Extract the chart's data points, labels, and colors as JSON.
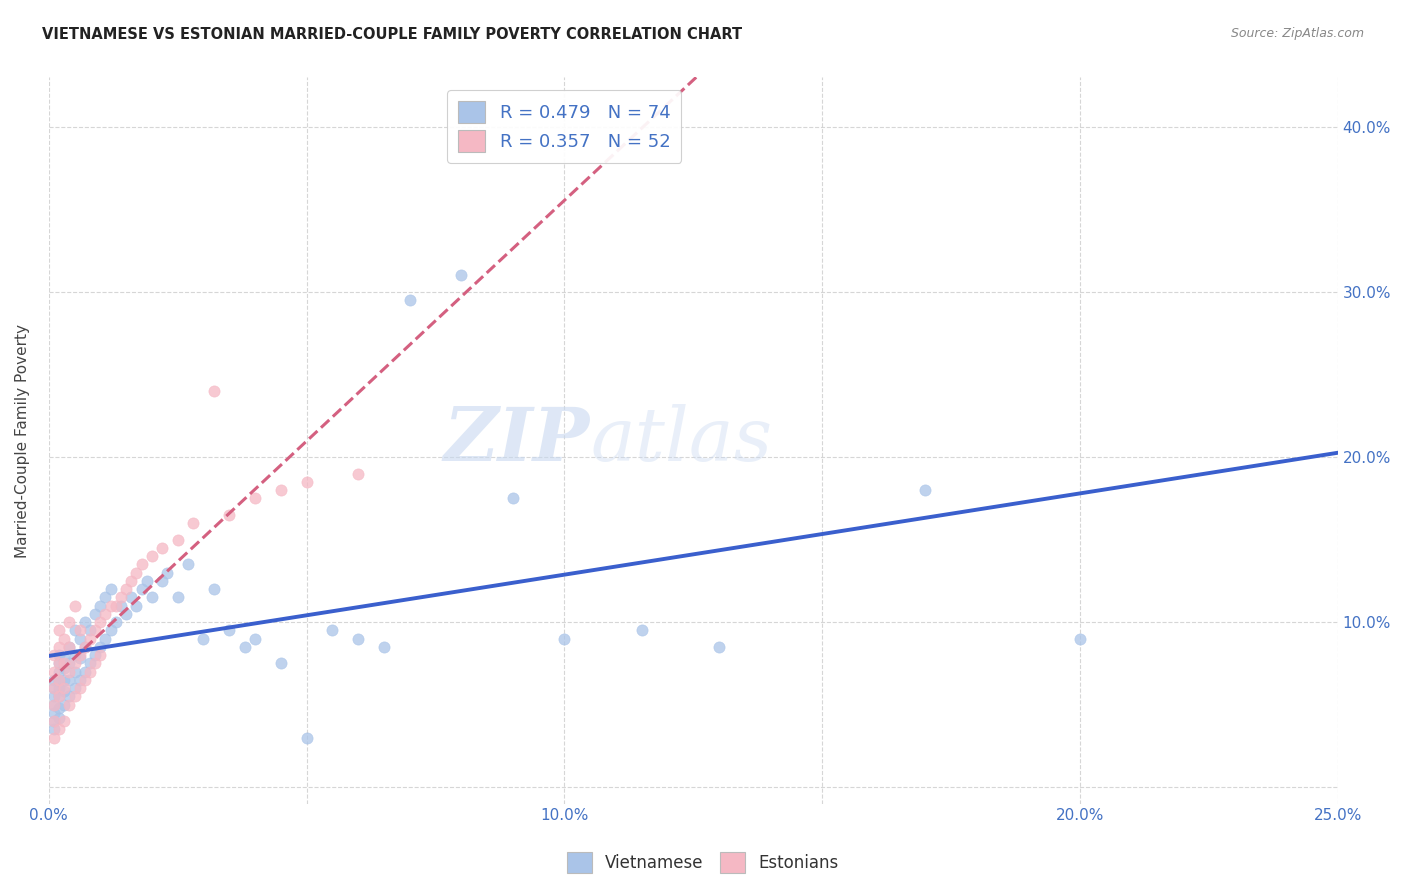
{
  "title": "VIETNAMESE VS ESTONIAN MARRIED-COUPLE FAMILY POVERTY CORRELATION CHART",
  "source": "Source: ZipAtlas.com",
  "ylabel": "Married-Couple Family Poverty",
  "xlim": [
    0.0,
    0.25
  ],
  "ylim": [
    -0.01,
    0.43
  ],
  "xticks": [
    0.0,
    0.05,
    0.1,
    0.15,
    0.2,
    0.25
  ],
  "yticks": [
    0.0,
    0.1,
    0.2,
    0.3,
    0.4
  ],
  "xticklabels": [
    "0.0%",
    "",
    "10.0%",
    "",
    "20.0%",
    "25.0%"
  ],
  "yticklabels_right": [
    "",
    "10.0%",
    "20.0%",
    "30.0%",
    "40.0%"
  ],
  "background_color": "#ffffff",
  "grid_color": "#cccccc",
  "viet_color": "#aac4e8",
  "esto_color": "#f5b8c4",
  "viet_line_color": "#3a5fcd",
  "esto_line_color": "#d46080",
  "viet_scatter_x": [
    0.001,
    0.001,
    0.001,
    0.001,
    0.001,
    0.001,
    0.001,
    0.002,
    0.002,
    0.002,
    0.002,
    0.002,
    0.002,
    0.002,
    0.002,
    0.003,
    0.003,
    0.003,
    0.003,
    0.003,
    0.004,
    0.004,
    0.004,
    0.004,
    0.005,
    0.005,
    0.005,
    0.005,
    0.006,
    0.006,
    0.006,
    0.007,
    0.007,
    0.007,
    0.008,
    0.008,
    0.009,
    0.009,
    0.01,
    0.01,
    0.011,
    0.011,
    0.012,
    0.012,
    0.013,
    0.014,
    0.015,
    0.016,
    0.017,
    0.018,
    0.019,
    0.02,
    0.022,
    0.023,
    0.025,
    0.027,
    0.03,
    0.032,
    0.035,
    0.038,
    0.04,
    0.045,
    0.05,
    0.055,
    0.06,
    0.065,
    0.07,
    0.08,
    0.09,
    0.1,
    0.115,
    0.13,
    0.17,
    0.2
  ],
  "viet_scatter_y": [
    0.035,
    0.04,
    0.045,
    0.05,
    0.055,
    0.06,
    0.065,
    0.042,
    0.048,
    0.055,
    0.06,
    0.065,
    0.07,
    0.075,
    0.08,
    0.05,
    0.058,
    0.065,
    0.072,
    0.078,
    0.055,
    0.065,
    0.075,
    0.085,
    0.06,
    0.07,
    0.08,
    0.095,
    0.065,
    0.078,
    0.09,
    0.07,
    0.085,
    0.1,
    0.075,
    0.095,
    0.08,
    0.105,
    0.085,
    0.11,
    0.09,
    0.115,
    0.095,
    0.12,
    0.1,
    0.11,
    0.105,
    0.115,
    0.11,
    0.12,
    0.125,
    0.115,
    0.125,
    0.13,
    0.115,
    0.135,
    0.09,
    0.12,
    0.095,
    0.085,
    0.09,
    0.075,
    0.03,
    0.095,
    0.09,
    0.085,
    0.295,
    0.31,
    0.175,
    0.09,
    0.095,
    0.085,
    0.18,
    0.09
  ],
  "esto_scatter_x": [
    0.001,
    0.001,
    0.001,
    0.001,
    0.001,
    0.001,
    0.002,
    0.002,
    0.002,
    0.002,
    0.002,
    0.002,
    0.003,
    0.003,
    0.003,
    0.003,
    0.004,
    0.004,
    0.004,
    0.004,
    0.005,
    0.005,
    0.005,
    0.006,
    0.006,
    0.006,
    0.007,
    0.007,
    0.008,
    0.008,
    0.009,
    0.009,
    0.01,
    0.01,
    0.011,
    0.012,
    0.013,
    0.014,
    0.015,
    0.016,
    0.017,
    0.018,
    0.02,
    0.022,
    0.025,
    0.028,
    0.032,
    0.035,
    0.04,
    0.045,
    0.05,
    0.06
  ],
  "esto_scatter_y": [
    0.03,
    0.04,
    0.05,
    0.06,
    0.07,
    0.08,
    0.035,
    0.055,
    0.065,
    0.075,
    0.085,
    0.095,
    0.04,
    0.06,
    0.075,
    0.09,
    0.05,
    0.07,
    0.085,
    0.1,
    0.055,
    0.075,
    0.11,
    0.06,
    0.08,
    0.095,
    0.065,
    0.085,
    0.07,
    0.09,
    0.075,
    0.095,
    0.08,
    0.1,
    0.105,
    0.11,
    0.11,
    0.115,
    0.12,
    0.125,
    0.13,
    0.135,
    0.14,
    0.145,
    0.15,
    0.16,
    0.24,
    0.165,
    0.175,
    0.18,
    0.185,
    0.19
  ],
  "legend_r1": "0.479",
  "legend_n1": "74",
  "legend_r2": "0.357",
  "legend_n2": "52",
  "legend_entries": [
    "Vietnamese",
    "Estonians"
  ]
}
